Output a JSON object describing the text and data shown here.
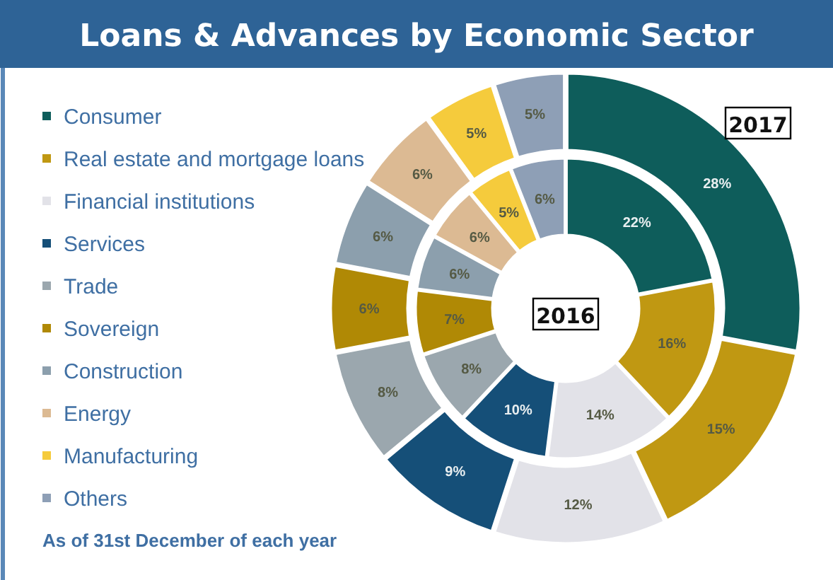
{
  "chart_data": {
    "type": "donut",
    "title": "Loans & Advances by Economic Sector",
    "categories": [
      "Consumer",
      "Real estate and mortgage loans",
      "Financial institutions",
      "Services",
      "Trade",
      "Sovereign",
      "Construction",
      "Energy",
      "Manufacturing",
      "Others"
    ],
    "colors": [
      "#0e5d5b",
      "#c09812",
      "#e2e2e8",
      "#154f78",
      "#9ba7ae",
      "#b08905",
      "#8c9fad",
      "#dcba93",
      "#f5cb3c",
      "#8e9fb6"
    ],
    "series": [
      {
        "name": "2017",
        "values": [
          28,
          15,
          12,
          9,
          8,
          6,
          6,
          6,
          5,
          5
        ],
        "value_labels": [
          "28%",
          "15%",
          "12%",
          "9%",
          "8%",
          "6%",
          "6%",
          "6%",
          "5%",
          "5%"
        ]
      },
      {
        "name": "2016",
        "values": [
          22,
          16,
          14,
          10,
          8,
          7,
          6,
          6,
          5,
          6
        ],
        "value_labels": [
          "22%",
          "16%",
          "14%",
          "10%",
          "8%",
          "7%",
          "6%",
          "6%",
          "5%",
          "6%"
        ]
      }
    ],
    "legend": "left",
    "annotations": [
      "As of 31st December of each year"
    ]
  }
}
